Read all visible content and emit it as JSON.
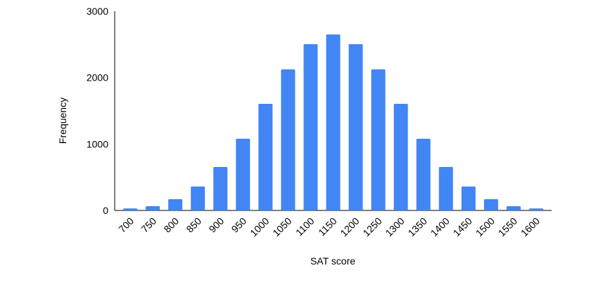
{
  "chart_data": {
    "type": "bar",
    "x_label": "SAT score",
    "y_label": "Frequency",
    "categories": [
      "700",
      "750",
      "800",
      "850",
      "900",
      "950",
      "1000",
      "1050",
      "1100",
      "1150",
      "1200",
      "1250",
      "1300",
      "1350",
      "1400",
      "1450",
      "1500",
      "1550",
      "1600"
    ],
    "values": [
      30,
      65,
      170,
      360,
      655,
      1080,
      1605,
      2125,
      2505,
      2650,
      2505,
      2125,
      1605,
      1080,
      655,
      360,
      170,
      65,
      30
    ],
    "color": "#4285f4",
    "ylim": [
      0,
      3000
    ],
    "yticks": [
      0,
      1000,
      2000,
      3000
    ],
    "grid": false
  }
}
